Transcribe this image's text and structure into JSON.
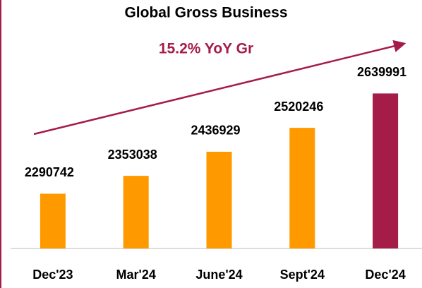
{
  "chart_data": {
    "type": "bar",
    "title": "Global Gross Business",
    "subtitle": "15.2% YoY Gr",
    "categories": [
      "Dec'23",
      "Mar'24",
      "June'24",
      "Sept'24",
      "Dec'24"
    ],
    "values": [
      2290742,
      2353038,
      2436929,
      2520246,
      2639991
    ],
    "colors": [
      "#ff9900",
      "#ff9900",
      "#ff9900",
      "#ff9900",
      "#a51c48"
    ],
    "ylim": [
      2100000,
      2700000
    ]
  }
}
